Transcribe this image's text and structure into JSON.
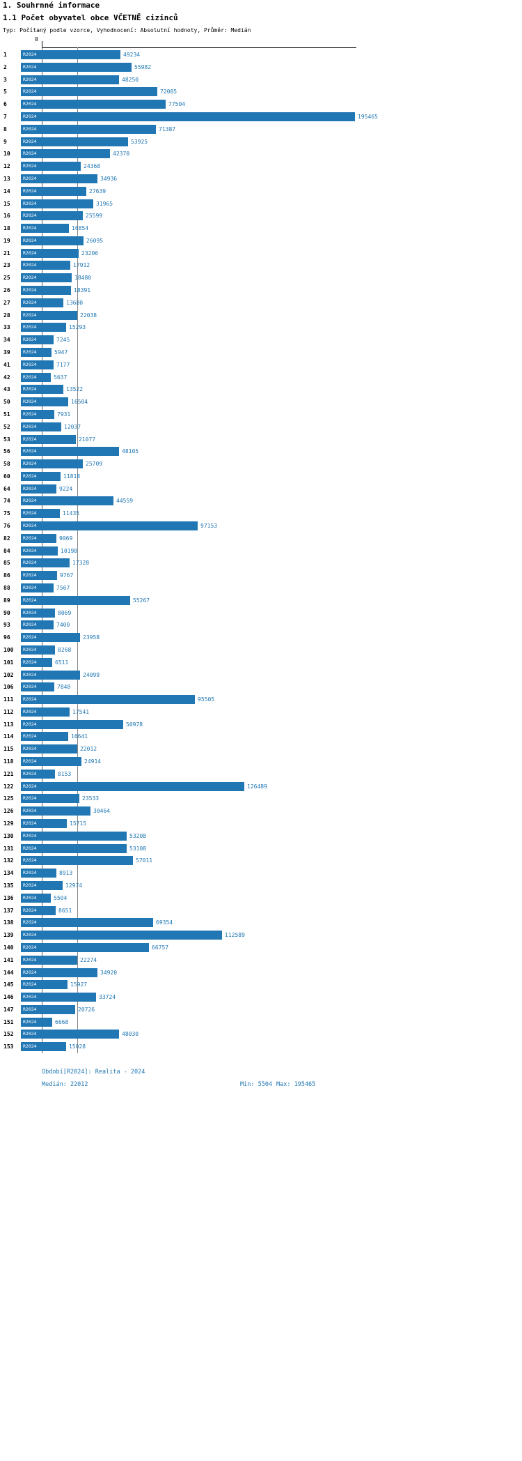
{
  "header": {
    "title1": "1. Souhrnné informace",
    "title2": "1.1 Počet obyvatel obce VČETNĚ cizinců",
    "subtitle": "Typ: Počítaný podle vzorce, Vyhodnocení: Absolutní hodnoty, Průměr: Medián"
  },
  "chart_data": {
    "type": "bar",
    "orientation": "horizontal",
    "series_label": "R2024",
    "bar_color": "#2077b4",
    "axis": {
      "zero_label": "0",
      "min_value": 5504,
      "max_value": 195465,
      "median_value": 22012,
      "median_line": true,
      "grid": false
    },
    "rows": [
      {
        "label": "1",
        "value": 49234
      },
      {
        "label": "2",
        "value": 55982
      },
      {
        "label": "3",
        "value": 48250
      },
      {
        "label": "5",
        "value": 72085
      },
      {
        "label": "6",
        "value": 77504
      },
      {
        "label": "7",
        "value": 195465
      },
      {
        "label": "8",
        "value": 71387
      },
      {
        "label": "9",
        "value": 53925
      },
      {
        "label": "10",
        "value": 42370
      },
      {
        "label": "12",
        "value": 24368
      },
      {
        "label": "13",
        "value": 34936
      },
      {
        "label": "14",
        "value": 27639
      },
      {
        "label": "15",
        "value": 31965
      },
      {
        "label": "16",
        "value": 25599
      },
      {
        "label": "18",
        "value": 16854
      },
      {
        "label": "19",
        "value": 26095
      },
      {
        "label": "21",
        "value": 23206
      },
      {
        "label": "23",
        "value": 17912
      },
      {
        "label": "25",
        "value": 18480
      },
      {
        "label": "26",
        "value": 18391
      },
      {
        "label": "27",
        "value": 13680
      },
      {
        "label": "28",
        "value": 22038
      },
      {
        "label": "33",
        "value": 15293
      },
      {
        "label": "34",
        "value": 7245
      },
      {
        "label": "39",
        "value": 5947
      },
      {
        "label": "41",
        "value": 7177
      },
      {
        "label": "42",
        "value": 5637
      },
      {
        "label": "43",
        "value": 13522
      },
      {
        "label": "50",
        "value": 16504
      },
      {
        "label": "51",
        "value": 7931
      },
      {
        "label": "52",
        "value": 12037
      },
      {
        "label": "53",
        "value": 21077
      },
      {
        "label": "56",
        "value": 48105
      },
      {
        "label": "58",
        "value": 25709
      },
      {
        "label": "60",
        "value": 11818
      },
      {
        "label": "64",
        "value": 9224
      },
      {
        "label": "74",
        "value": 44559
      },
      {
        "label": "75",
        "value": 11435
      },
      {
        "label": "76",
        "value": 97153
      },
      {
        "label": "82",
        "value": 9069
      },
      {
        "label": "84",
        "value": 10198
      },
      {
        "label": "85",
        "value": 17328
      },
      {
        "label": "86",
        "value": 9767
      },
      {
        "label": "88",
        "value": 7567
      },
      {
        "label": "89",
        "value": 55267
      },
      {
        "label": "90",
        "value": 8069
      },
      {
        "label": "93",
        "value": 7400
      },
      {
        "label": "96",
        "value": 23958
      },
      {
        "label": "100",
        "value": 8268
      },
      {
        "label": "101",
        "value": 6511
      },
      {
        "label": "102",
        "value": 24099
      },
      {
        "label": "106",
        "value": 7848
      },
      {
        "label": "111",
        "value": 95505
      },
      {
        "label": "112",
        "value": 17541
      },
      {
        "label": "113",
        "value": 50978
      },
      {
        "label": "114",
        "value": 16641
      },
      {
        "label": "115",
        "value": 22012
      },
      {
        "label": "118",
        "value": 24914
      },
      {
        "label": "121",
        "value": 8153
      },
      {
        "label": "122",
        "value": 126489
      },
      {
        "label": "125",
        "value": 23533
      },
      {
        "label": "126",
        "value": 30464
      },
      {
        "label": "129",
        "value": 15715
      },
      {
        "label": "130",
        "value": 53208
      },
      {
        "label": "131",
        "value": 53108
      },
      {
        "label": "132",
        "value": 57011
      },
      {
        "label": "134",
        "value": 8913
      },
      {
        "label": "135",
        "value": 12974
      },
      {
        "label": "136",
        "value": 5504
      },
      {
        "label": "137",
        "value": 8651
      },
      {
        "label": "138",
        "value": 69354
      },
      {
        "label": "139",
        "value": 112589
      },
      {
        "label": "140",
        "value": 66757
      },
      {
        "label": "141",
        "value": 22274
      },
      {
        "label": "144",
        "value": 34920
      },
      {
        "label": "145",
        "value": 15927
      },
      {
        "label": "146",
        "value": 33724
      },
      {
        "label": "147",
        "value": 20726
      },
      {
        "label": "151",
        "value": 6668
      },
      {
        "label": "152",
        "value": 48030
      },
      {
        "label": "153",
        "value": 15028
      }
    ]
  },
  "footer": {
    "period": "Období[R2024]: Realita - 2024",
    "median": "Medián: 22012",
    "min": "Min: 5504",
    "max": "Max: 195465"
  }
}
